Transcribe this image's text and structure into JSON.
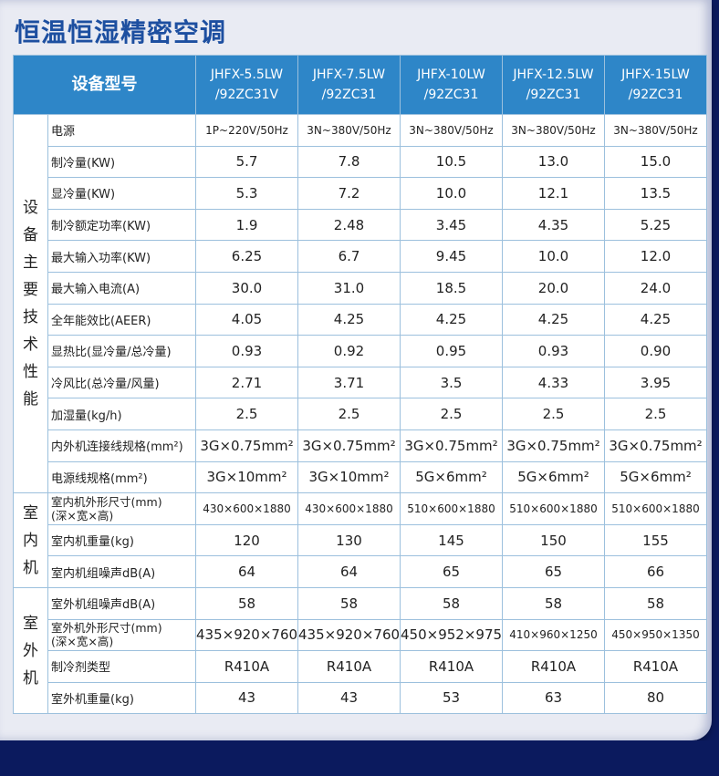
{
  "title": "恒温恒湿精密空调",
  "header": {
    "label": "设备型号",
    "models": [
      [
        "JHFX-5.5LW",
        "/92ZC31V"
      ],
      [
        "JHFX-7.5LW",
        "/92ZC31"
      ],
      [
        "JHFX-10LW",
        "/92ZC31"
      ],
      [
        "JHFX-12.5LW",
        "/92ZC31"
      ],
      [
        "JHFX-15LW",
        "/92ZC31"
      ]
    ]
  },
  "categories": {
    "main": "设备主要技术性能",
    "indoor": "室内机",
    "outdoor": "室外机"
  },
  "rows": {
    "r1": {
      "label": "电源",
      "values": [
        "1P~220V/50Hz",
        "3N~380V/50Hz",
        "3N~380V/50Hz",
        "3N~380V/50Hz",
        "3N~380V/50Hz"
      ]
    },
    "r2": {
      "label": "制冷量(KW)",
      "values": [
        "5.7",
        "7.8",
        "10.5",
        "13.0",
        "15.0"
      ]
    },
    "r3": {
      "label": "显冷量(KW)",
      "values": [
        "5.3",
        "7.2",
        "10.0",
        "12.1",
        "13.5"
      ]
    },
    "r4": {
      "label": "制冷额定功率(KW)",
      "values": [
        "1.9",
        "2.48",
        "3.45",
        "4.35",
        "5.25"
      ]
    },
    "r5": {
      "label": "最大输入功率(KW)",
      "values": [
        "6.25",
        "6.7",
        "9.45",
        "10.0",
        "12.0"
      ]
    },
    "r6": {
      "label": "最大输入电流(A)",
      "values": [
        "30.0",
        "31.0",
        "18.5",
        "20.0",
        "24.0"
      ]
    },
    "r7": {
      "label": "全年能效比(AEER)",
      "values": [
        "4.05",
        "4.25",
        "4.25",
        "4.25",
        "4.25"
      ]
    },
    "r8": {
      "label": "显热比(显冷量/总冷量)",
      "values": [
        "0.93",
        "0.92",
        "0.95",
        "0.93",
        "0.90"
      ]
    },
    "r9": {
      "label": "冷风比(总冷量/风量)",
      "values": [
        "2.71",
        "3.71",
        "3.5",
        "4.33",
        "3.95"
      ]
    },
    "r10": {
      "label": "加湿量(kg/h)",
      "values": [
        "2.5",
        "2.5",
        "2.5",
        "2.5",
        "2.5"
      ]
    },
    "r11": {
      "label": "内外机连接线规格(mm²)",
      "values": [
        "3G×0.75mm²",
        "3G×0.75mm²",
        "3G×0.75mm²",
        "3G×0.75mm²",
        "3G×0.75mm²"
      ]
    },
    "r12": {
      "label": "电源线规格(mm²)",
      "values": [
        "3G×10mm²",
        "3G×10mm²",
        "5G×6mm²",
        "5G×6mm²",
        "5G×6mm²"
      ]
    },
    "r13": {
      "label": "室内机外形尺寸(mm)",
      "label2": "(深×宽×高)",
      "values": [
        "430×600×1880",
        "430×600×1880",
        "510×600×1880",
        "510×600×1880",
        "510×600×1880"
      ]
    },
    "r14": {
      "label": "室内机重量(kg)",
      "values": [
        "120",
        "130",
        "145",
        "150",
        "155"
      ]
    },
    "r15": {
      "label": "室内机组噪声dB(A)",
      "values": [
        "64",
        "64",
        "65",
        "65",
        "66"
      ]
    },
    "r16": {
      "label": "室外机组噪声dB(A)",
      "values": [
        "58",
        "58",
        "58",
        "58",
        "58"
      ]
    },
    "r17": {
      "label": "室外机外形尺寸(mm)",
      "label2": "(深×宽×高)",
      "values": [
        "435×920×760",
        "435×920×760",
        "450×952×975",
        "410×960×1250",
        "450×950×1350"
      ]
    },
    "r18": {
      "label": "制冷剂类型",
      "values": [
        "R410A",
        "R410A",
        "R410A",
        "R410A",
        "R410A"
      ]
    },
    "r19": {
      "label": "室外机重量(kg)",
      "values": [
        "43",
        "43",
        "53",
        "63",
        "80"
      ]
    }
  }
}
